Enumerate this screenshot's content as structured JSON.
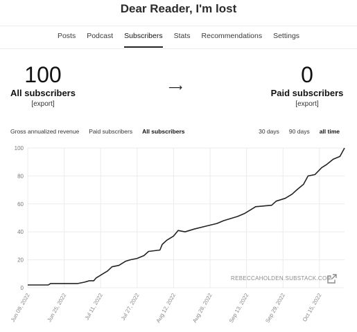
{
  "header": {
    "title": "Dear Reader, I'm lost"
  },
  "tabs": [
    {
      "label": "Posts",
      "active": false
    },
    {
      "label": "Podcast",
      "active": false
    },
    {
      "label": "Subscribers",
      "active": true
    },
    {
      "label": "Stats",
      "active": false
    },
    {
      "label": "Recommendations",
      "active": false
    },
    {
      "label": "Settings",
      "active": false
    }
  ],
  "stats": {
    "all": {
      "value": "100",
      "label": "All subscribers",
      "export": "[export]"
    },
    "paid": {
      "value": "0",
      "label": "Paid subscribers",
      "export": "[export]"
    },
    "arrow": "⟶"
  },
  "filters": [
    {
      "label": "Gross annualized revenue",
      "active": false
    },
    {
      "label": "Paid subscribers",
      "active": false
    },
    {
      "label": "All subscribers",
      "active": true
    }
  ],
  "ranges": [
    {
      "label": "30 days",
      "active": false
    },
    {
      "label": "90 days",
      "active": false
    },
    {
      "label": "all time",
      "active": true
    }
  ],
  "watermark": "REBECCAHOLDEN.SUBSTACK.COM",
  "colors": {
    "line": "#222222",
    "grid": "#ebebeb",
    "tab_active": "#222222"
  },
  "icons": {
    "external_link": "external-link-icon"
  },
  "chart_data": {
    "type": "line",
    "title": "",
    "xlabel": "",
    "ylabel": "",
    "ylim": [
      0,
      100
    ],
    "yticks": [
      0,
      20,
      40,
      60,
      80,
      100
    ],
    "xlim": [
      "2022-06-09",
      "2022-10-26"
    ],
    "xticks": [
      "Jun 09, 2022",
      "Jun 25, 2022",
      "Jul 11, 2022",
      "Jul 27, 2022",
      "Aug 12, 2022",
      "Aug 28, 2022",
      "Sep 13, 2022",
      "Sep 29, 2022",
      "Oct 15, 2022"
    ],
    "grid": true,
    "series": [
      {
        "name": "",
        "points": [
          [
            "2022-06-09",
            2
          ],
          [
            "2022-06-18",
            2
          ],
          [
            "2022-06-19",
            3
          ],
          [
            "2022-07-01",
            3
          ],
          [
            "2022-07-04",
            4
          ],
          [
            "2022-07-06",
            5
          ],
          [
            "2022-07-08",
            5
          ],
          [
            "2022-07-09",
            7
          ],
          [
            "2022-07-12",
            10
          ],
          [
            "2022-07-14",
            12
          ],
          [
            "2022-07-16",
            15
          ],
          [
            "2022-07-19",
            16
          ],
          [
            "2022-07-22",
            19
          ],
          [
            "2022-07-24",
            20
          ],
          [
            "2022-07-27",
            21
          ],
          [
            "2022-07-30",
            23
          ],
          [
            "2022-08-01",
            26
          ],
          [
            "2022-08-06",
            27
          ],
          [
            "2022-08-07",
            31
          ],
          [
            "2022-08-09",
            34
          ],
          [
            "2022-08-12",
            37
          ],
          [
            "2022-08-14",
            41
          ],
          [
            "2022-08-17",
            40
          ],
          [
            "2022-08-21",
            42
          ],
          [
            "2022-08-26",
            44
          ],
          [
            "2022-08-31",
            46
          ],
          [
            "2022-09-03",
            48
          ],
          [
            "2022-09-05",
            49
          ],
          [
            "2022-09-09",
            51
          ],
          [
            "2022-09-12",
            53
          ],
          [
            "2022-09-15",
            56
          ],
          [
            "2022-09-17",
            58
          ],
          [
            "2022-09-24",
            59
          ],
          [
            "2022-09-26",
            62
          ],
          [
            "2022-09-30",
            64
          ],
          [
            "2022-10-03",
            67
          ],
          [
            "2022-10-05",
            70
          ],
          [
            "2022-10-08",
            74
          ],
          [
            "2022-10-10",
            80
          ],
          [
            "2022-10-13",
            81
          ],
          [
            "2022-10-16",
            86
          ],
          [
            "2022-10-18",
            88
          ],
          [
            "2022-10-21",
            92
          ],
          [
            "2022-10-24",
            94
          ],
          [
            "2022-10-26",
            100
          ]
        ]
      }
    ]
  }
}
